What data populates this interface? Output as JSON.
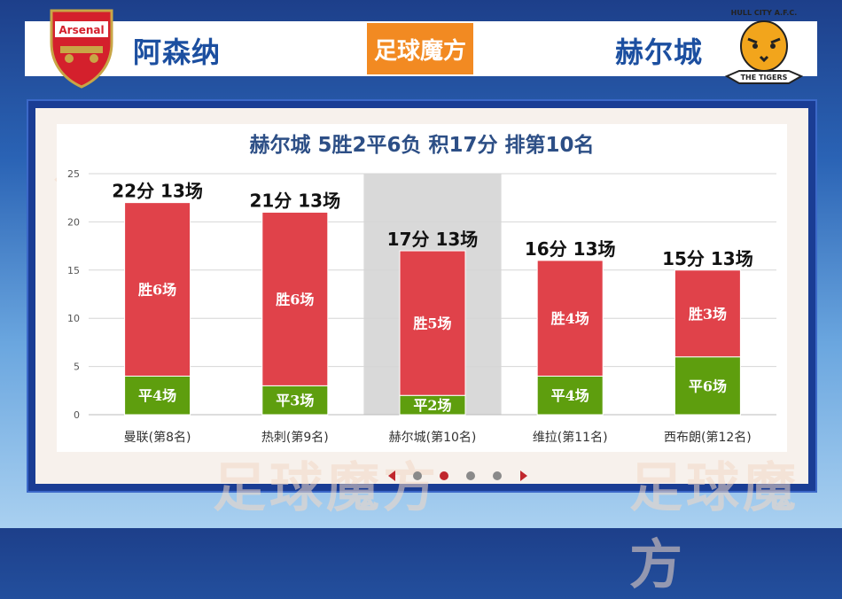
{
  "header": {
    "home_team": "阿森纳",
    "away_team": "赫尔城",
    "brand": "足球魔方",
    "home_crest_text": "Arsenal",
    "away_crest_text": "HULL CITY A.F.C.",
    "away_crest_subtext": "THE TIGERS"
  },
  "colors": {
    "win": "#e0424a",
    "draw": "#5e9e0e",
    "highlight": "#d9d9d9",
    "team_name": "#1c4fa0"
  },
  "watermark": "足球魔方",
  "pager": {
    "count": 4,
    "active_index": 1
  },
  "chart_data": {
    "type": "bar",
    "stacked": true,
    "title": "赫尔城 5胜2平6负 积17分 排第10名",
    "categories": [
      "曼联(第8名)",
      "热刺(第9名)",
      "赫尔城(第10名)",
      "维拉(第11名)",
      "西布朗(第12名)"
    ],
    "highlight_category": "赫尔城(第10名)",
    "y_ticks": [
      0,
      5,
      10,
      15,
      20,
      25
    ],
    "ylim": [
      0,
      25
    ],
    "grid": true,
    "series": [
      {
        "name": "平",
        "values": [
          4,
          3,
          2,
          4,
          6
        ],
        "labels": [
          "平4场",
          "平3场",
          "平2场",
          "平4场",
          "平6场"
        ]
      },
      {
        "name": "胜",
        "values": [
          18,
          18,
          15,
          12,
          9
        ],
        "labels": [
          "胜6场",
          "胜6场",
          "胜5场",
          "胜4场",
          "胜3场"
        ]
      }
    ],
    "totals": [
      22,
      21,
      17,
      16,
      15
    ],
    "total_labels": [
      "22分 13场",
      "21分 13场",
      "17分 13场",
      "16分 13场",
      "15分 13场"
    ]
  }
}
